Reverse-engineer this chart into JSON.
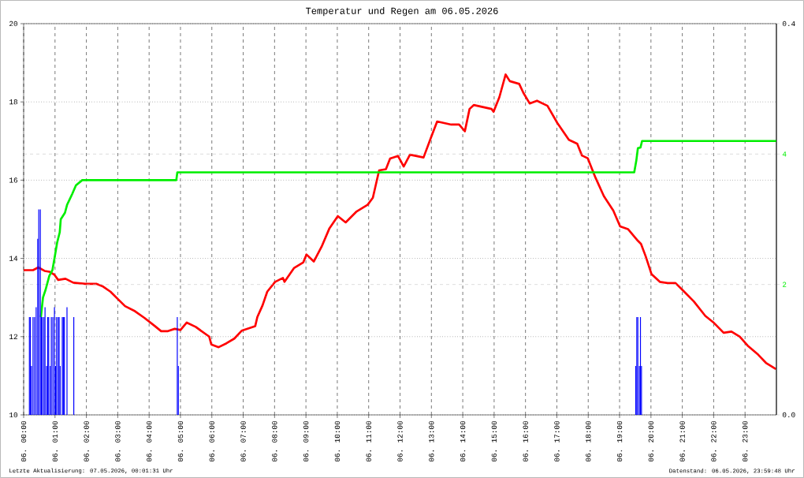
{
  "chart_data": {
    "type": "line",
    "title": "Temperatur und Regen am 06.05.2026",
    "xlim": [
      "2026-05-06T00:00",
      "2026-05-07T00:00"
    ],
    "xticks": [
      {
        "value": "2026-05-06T00:00",
        "label": "06. 00:00"
      },
      {
        "value": "2026-05-06T01:00",
        "label": "06. 01:00"
      },
      {
        "value": "2026-05-06T02:00",
        "label": "06. 02:00"
      },
      {
        "value": "2026-05-06T03:00",
        "label": "06. 03:00"
      },
      {
        "value": "2026-05-06T04:00",
        "label": "06. 04:00"
      },
      {
        "value": "2026-05-06T05:00",
        "label": "06. 05:00"
      },
      {
        "value": "2026-05-06T06:00",
        "label": "06. 06:00"
      },
      {
        "value": "2026-05-06T07:00",
        "label": "06. 07:00"
      },
      {
        "value": "2026-05-06T08:00",
        "label": "06. 08:00"
      },
      {
        "value": "2026-05-06T09:00",
        "label": "06. 09:00"
      },
      {
        "value": "2026-05-06T10:00",
        "label": "06. 10:00"
      },
      {
        "value": "2026-05-06T11:00",
        "label": "06. 11:00"
      },
      {
        "value": "2026-05-06T12:00",
        "label": "06. 12:00"
      },
      {
        "value": "2026-05-06T13:00",
        "label": "06. 13:00"
      },
      {
        "value": "2026-05-06T14:00",
        "label": "06. 14:00"
      },
      {
        "value": "2026-05-06T15:00",
        "label": "06. 15:00"
      },
      {
        "value": "2026-05-06T16:00",
        "label": "06. 16:00"
      },
      {
        "value": "2026-05-06T17:00",
        "label": "06. 17:00"
      },
      {
        "value": "2026-05-06T18:00",
        "label": "06. 18:00"
      },
      {
        "value": "2026-05-06T19:00",
        "label": "06. 19:00"
      },
      {
        "value": "2026-05-06T20:00",
        "label": "06. 20:00"
      },
      {
        "value": "2026-05-06T21:00",
        "label": "06. 21:00"
      },
      {
        "value": "2026-05-06T22:00",
        "label": "06. 22:00"
      },
      {
        "value": "2026-05-06T23:00",
        "label": "06. 23:00"
      }
    ],
    "ylim": [
      10,
      20
    ],
    "yticks": [
      10,
      12,
      14,
      16,
      18,
      20
    ],
    "y2lim": [
      0,
      6
    ],
    "y2ticks": [
      2,
      4
    ],
    "y3lim": [
      0,
      0.4
    ],
    "y3ticks": [
      {
        "value": 0,
        "label": "0.0"
      },
      0.4
    ],
    "grid": true,
    "series": [
      {
        "type": "bar",
        "axis": "y3",
        "color": "#0000ff",
        "x": [
          "2026-05-06T00:10",
          "2026-05-06T00:12",
          "2026-05-06T00:14",
          "2026-05-06T00:17",
          "2026-05-06T00:20",
          "2026-05-06T00:23",
          "2026-05-06T00:26",
          "2026-05-06T00:28",
          "2026-05-06T00:31",
          "2026-05-06T00:33",
          "2026-05-06T00:35",
          "2026-05-06T00:38",
          "2026-05-06T00:40",
          "2026-05-06T00:43",
          "2026-05-06T00:45",
          "2026-05-06T00:47",
          "2026-05-06T00:50",
          "2026-05-06T00:52",
          "2026-05-06T00:55",
          "2026-05-06T00:58",
          "2026-05-06T01:00",
          "2026-05-06T01:02",
          "2026-05-06T01:05",
          "2026-05-06T01:07",
          "2026-05-06T01:09",
          "2026-05-06T01:13",
          "2026-05-06T01:15",
          "2026-05-06T01:17",
          "2026-05-06T01:22",
          "2026-05-06T01:35",
          "2026-05-06T04:53",
          "2026-05-06T04:55",
          "2026-05-06T19:30",
          "2026-05-06T19:32",
          "2026-05-06T19:34",
          "2026-05-06T19:37",
          "2026-05-06T19:39",
          "2026-05-06T19:41"
        ],
        "values": [
          0.1,
          0.1,
          0.05,
          0.1,
          0.1,
          0.11,
          0.18,
          0.21,
          0.21,
          0.1,
          0.1,
          0.1,
          0.11,
          0.05,
          0.1,
          0.1,
          0.05,
          0.1,
          0.1,
          0.11,
          0.05,
          0.1,
          0.1,
          0.1,
          0.05,
          0.1,
          0.1,
          0.1,
          0.11,
          0.1,
          0.1,
          0.05,
          0.05,
          0.1,
          0.1,
          0.05,
          0.1,
          0.05
        ]
      },
      {
        "type": "line",
        "axis": "y2",
        "color": "#00ee00",
        "x": [
          "2026-05-06T00:33",
          "2026-05-06T00:37",
          "2026-05-06T00:42",
          "2026-05-06T00:49",
          "2026-05-06T00:55",
          "2026-05-06T00:59",
          "2026-05-06T01:04",
          "2026-05-06T01:09",
          "2026-05-06T01:11",
          "2026-05-06T01:19",
          "2026-05-06T01:23",
          "2026-05-06T01:33",
          "2026-05-06T01:40",
          "2026-05-06T01:52",
          "2026-05-06T04:52",
          "2026-05-06T04:54",
          "2026-05-06T19:28",
          "2026-05-06T19:32",
          "2026-05-06T19:35",
          "2026-05-06T19:40",
          "2026-05-06T19:43",
          "2026-05-07T00:00"
        ],
        "values": [
          1.5,
          1.8,
          1.92,
          2.13,
          2.22,
          2.4,
          2.64,
          2.8,
          3.0,
          3.1,
          3.22,
          3.39,
          3.52,
          3.6,
          3.6,
          3.72,
          3.72,
          3.9,
          4.09,
          4.1,
          4.2,
          4.2
        ]
      },
      {
        "axis": "y",
        "color": "#ff0000",
        "x": [
          "2026-05-06T00:00",
          "2026-05-06T00:18",
          "2026-05-06T00:28",
          "2026-05-06T00:40",
          "2026-05-06T00:49",
          "2026-05-06T00:59",
          "2026-05-06T01:06",
          "2026-05-06T01:20",
          "2026-05-06T01:35",
          "2026-05-06T01:58",
          "2026-05-06T02:19",
          "2026-05-06T02:32",
          "2026-05-06T02:46",
          "2026-05-06T03:01",
          "2026-05-06T03:14",
          "2026-05-06T03:33",
          "2026-05-06T03:51",
          "2026-05-06T04:11",
          "2026-05-06T04:23",
          "2026-05-06T04:36",
          "2026-05-06T04:49",
          "2026-05-06T05:00",
          "2026-05-06T05:12",
          "2026-05-06T05:29",
          "2026-05-06T05:55",
          "2026-05-06T05:59",
          "2026-05-06T06:13",
          "2026-05-06T06:28",
          "2026-05-06T06:43",
          "2026-05-06T06:57",
          "2026-05-06T07:23",
          "2026-05-06T07:27",
          "2026-05-06T07:37",
          "2026-05-06T07:46",
          "2026-05-06T08:01",
          "2026-05-06T08:16",
          "2026-05-06T08:19",
          "2026-05-06T08:37",
          "2026-05-06T08:55",
          "2026-05-06T09:01",
          "2026-05-06T09:15",
          "2026-05-06T09:30",
          "2026-05-06T09:45",
          "2026-05-06T10:01",
          "2026-05-06T10:16",
          "2026-05-06T10:37",
          "2026-05-06T10:58",
          "2026-05-06T11:08",
          "2026-05-06T11:20",
          "2026-05-06T11:33",
          "2026-05-06T11:41",
          "2026-05-06T11:56",
          "2026-05-06T12:07",
          "2026-05-06T12:19",
          "2026-05-06T12:45",
          "2026-05-06T12:59",
          "2026-05-06T13:11",
          "2026-05-06T13:38",
          "2026-05-06T13:53",
          "2026-05-06T14:04",
          "2026-05-06T14:13",
          "2026-05-06T14:21",
          "2026-05-06T14:55",
          "2026-05-06T14:59",
          "2026-05-06T15:10",
          "2026-05-06T15:22",
          "2026-05-06T15:30",
          "2026-05-06T15:48",
          "2026-05-06T15:56",
          "2026-05-06T16:08",
          "2026-05-06T16:22",
          "2026-05-06T16:42",
          "2026-05-06T17:01",
          "2026-05-06T17:23",
          "2026-05-06T17:39",
          "2026-05-06T17:48",
          "2026-05-06T17:59",
          "2026-05-06T18:14",
          "2026-05-06T18:30",
          "2026-05-06T18:48",
          "2026-05-06T19:01",
          "2026-05-06T19:16",
          "2026-05-06T19:35",
          "2026-05-06T19:41",
          "2026-05-06T19:50",
          "2026-05-06T20:01",
          "2026-05-06T20:17",
          "2026-05-06T20:32",
          "2026-05-06T20:47",
          "2026-05-06T21:02",
          "2026-05-06T21:22",
          "2026-05-06T21:44",
          "2026-05-06T21:59",
          "2026-05-06T22:19",
          "2026-05-06T22:34",
          "2026-05-06T22:50",
          "2026-05-06T23:05",
          "2026-05-06T23:25",
          "2026-05-06T23:40",
          "2026-05-06T23:59"
        ],
        "values": [
          13.7,
          13.7,
          13.77,
          13.68,
          13.66,
          13.58,
          13.45,
          13.48,
          13.38,
          13.35,
          13.35,
          13.28,
          13.15,
          12.95,
          12.78,
          12.65,
          12.48,
          12.27,
          12.14,
          12.14,
          12.2,
          12.17,
          12.36,
          12.25,
          12.0,
          11.8,
          11.73,
          11.83,
          11.95,
          12.15,
          12.27,
          12.5,
          12.8,
          13.15,
          13.4,
          13.5,
          13.4,
          13.75,
          13.9,
          14.1,
          13.92,
          14.3,
          14.77,
          15.08,
          14.92,
          15.2,
          15.37,
          15.55,
          16.25,
          16.28,
          16.55,
          16.62,
          16.35,
          16.65,
          16.58,
          17.08,
          17.5,
          17.42,
          17.42,
          17.25,
          17.82,
          17.92,
          17.82,
          17.75,
          18.12,
          18.7,
          18.53,
          18.46,
          18.23,
          17.96,
          18.03,
          17.9,
          17.46,
          17.03,
          16.93,
          16.63,
          16.56,
          16.06,
          15.59,
          15.22,
          14.82,
          14.75,
          14.45,
          14.37,
          14.05,
          13.6,
          13.4,
          13.37,
          13.37,
          13.17,
          12.9,
          12.53,
          12.37,
          12.1,
          12.13,
          12.0,
          11.77,
          11.54,
          11.33,
          11.17
        ]
      }
    ],
    "annotations": [
      "Letzte Aktualisierung: 07.05.2026, 00:01:31 Uhr",
      "Datenstand: 06.05.2026, 23:59:48 Uhr"
    ]
  }
}
